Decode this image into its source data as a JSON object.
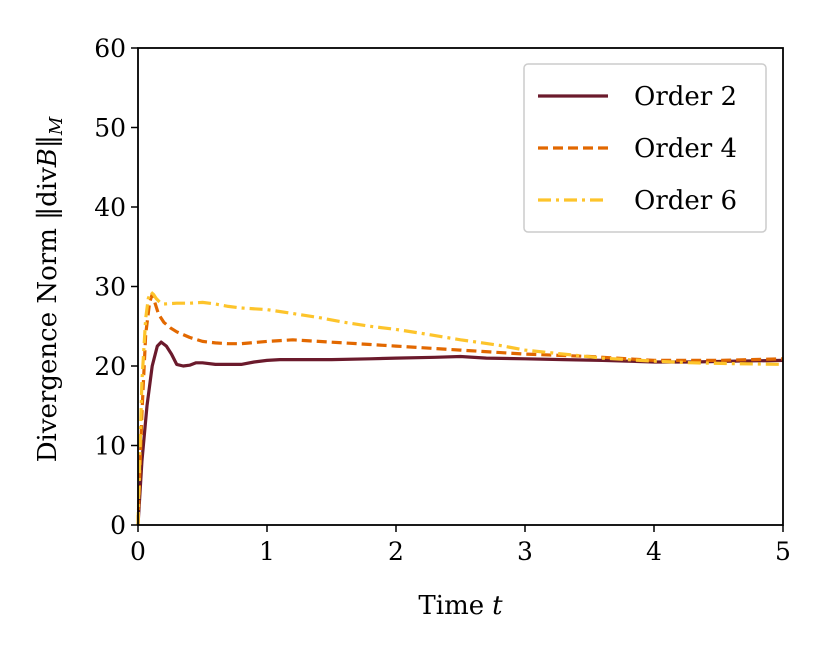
{
  "chart_data": {
    "type": "line",
    "xlabel": "Time",
    "xlabel_var": "t",
    "ylabel_main": "Divergence Norm ‖div",
    "ylabel_var": "B",
    "ylabel_tail": "‖",
    "ylabel_sub": "M",
    "xlim": [
      0,
      5
    ],
    "ylim": [
      0,
      60
    ],
    "xticks": [
      0,
      1,
      2,
      3,
      4,
      5
    ],
    "yticks": [
      0,
      10,
      20,
      30,
      40,
      50,
      60
    ],
    "grid": false,
    "legend_position": "top-right",
    "series": [
      {
        "name": "Order 2",
        "color": "#6b1a2c",
        "dash": "solid",
        "x": [
          0,
          0.03,
          0.07,
          0.11,
          0.15,
          0.18,
          0.22,
          0.26,
          0.3,
          0.35,
          0.4,
          0.45,
          0.5,
          0.6,
          0.7,
          0.8,
          0.9,
          1.0,
          1.1,
          1.2,
          1.3,
          1.5,
          1.8,
          2.0,
          2.3,
          2.5,
          2.7,
          3.0,
          3.3,
          3.6,
          4.0,
          4.3,
          4.6,
          5.0
        ],
        "y": [
          0,
          8,
          15,
          20,
          22.5,
          23,
          22.5,
          21.5,
          20.2,
          20,
          20.1,
          20.4,
          20.4,
          20.2,
          20.2,
          20.2,
          20.5,
          20.7,
          20.8,
          20.8,
          20.8,
          20.8,
          20.9,
          21.0,
          21.1,
          21.2,
          21.0,
          20.9,
          20.8,
          20.7,
          20.5,
          20.5,
          20.6,
          20.7
        ]
      },
      {
        "name": "Order 4",
        "color": "#e26800",
        "dash": "dashed",
        "x": [
          0,
          0.03,
          0.06,
          0.09,
          0.11,
          0.13,
          0.16,
          0.2,
          0.25,
          0.3,
          0.4,
          0.5,
          0.6,
          0.7,
          0.8,
          1.0,
          1.2,
          1.4,
          1.6,
          1.8,
          2.0,
          2.5,
          3.0,
          3.5,
          4.0,
          4.5,
          5.0
        ],
        "y": [
          0,
          14,
          24,
          28,
          29,
          28,
          26.5,
          25.5,
          24.8,
          24.3,
          23.6,
          23.1,
          22.9,
          22.8,
          22.8,
          23.1,
          23.3,
          23.1,
          22.9,
          22.7,
          22.5,
          22.0,
          21.5,
          21.2,
          20.7,
          20.7,
          20.9
        ]
      },
      {
        "name": "Order 6",
        "color": "#fdc42b",
        "dash": "dashdot",
        "x": [
          0,
          0.03,
          0.06,
          0.08,
          0.1,
          0.12,
          0.14,
          0.17,
          0.2,
          0.3,
          0.4,
          0.5,
          0.6,
          0.7,
          0.8,
          1.0,
          1.2,
          1.4,
          1.6,
          1.8,
          2.0,
          2.2,
          2.5,
          2.8,
          3.0,
          3.3,
          3.6,
          4.0,
          4.3,
          4.6,
          5.0
        ],
        "y": [
          0,
          18,
          26,
          28.5,
          29.3,
          29,
          28.5,
          28,
          27.8,
          27.9,
          27.9,
          28,
          27.8,
          27.5,
          27.3,
          27.1,
          26.6,
          26.1,
          25.5,
          25.0,
          24.6,
          24.1,
          23.3,
          22.6,
          22.0,
          21.5,
          21.0,
          20.6,
          20.4,
          20.3,
          20.2
        ]
      }
    ]
  }
}
